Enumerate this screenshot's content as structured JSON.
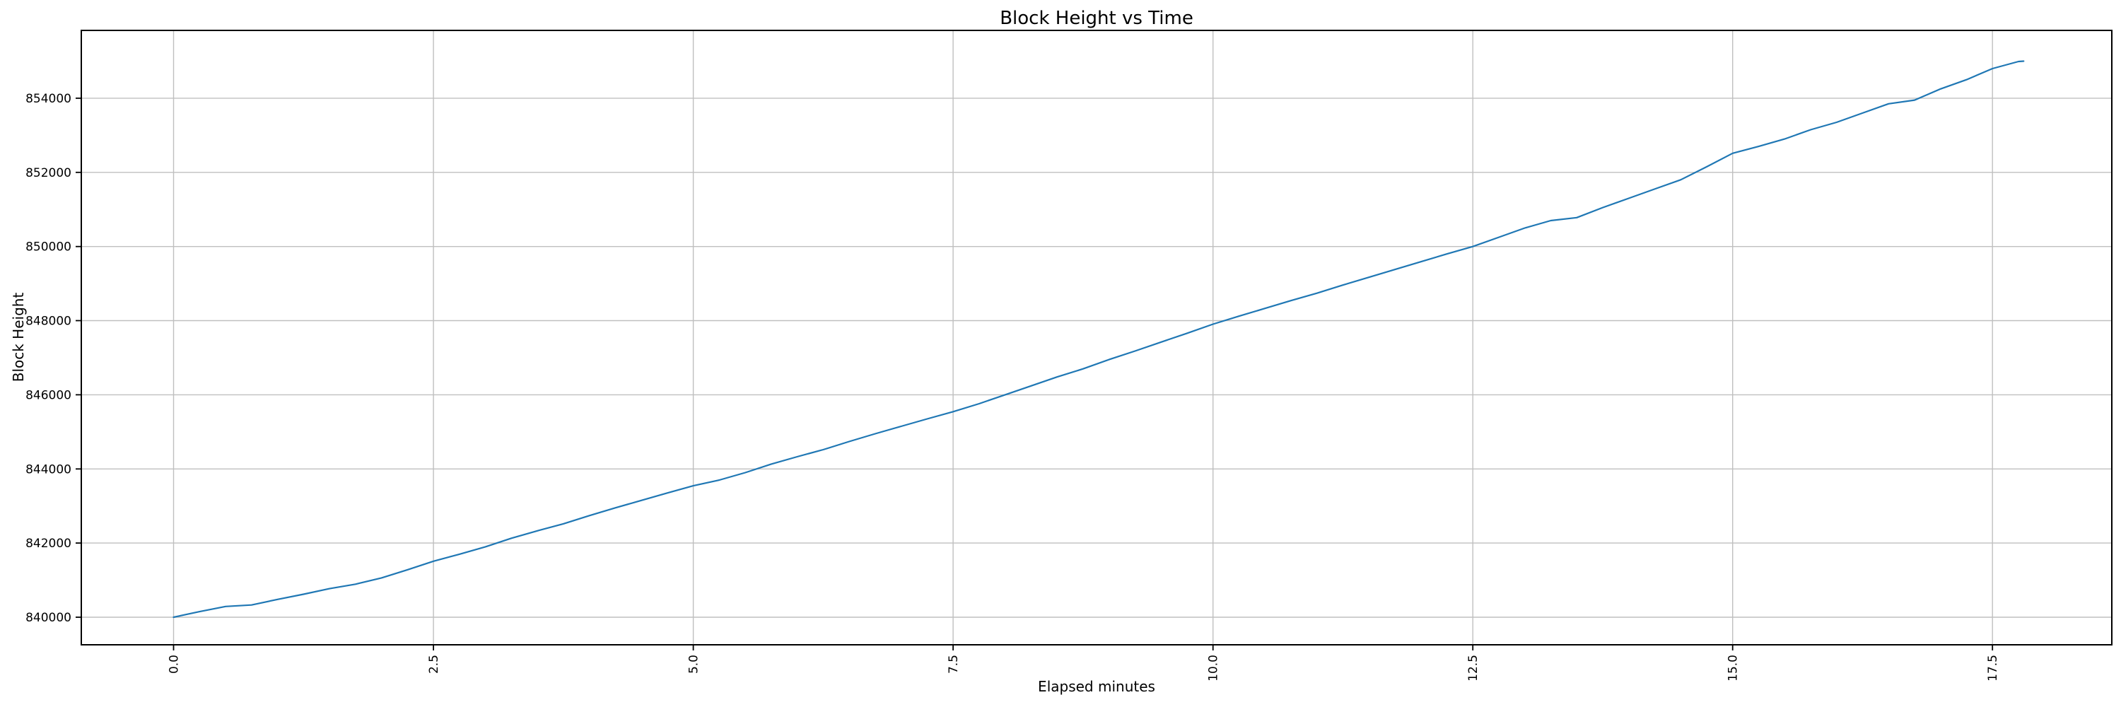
{
  "chart": {
    "title": "Block Height vs Time",
    "xlabel": "Elapsed minutes",
    "ylabel": "Block Height"
  },
  "chart_data": {
    "type": "line",
    "title": "Block Height vs Time",
    "xlabel": "Elapsed minutes",
    "ylabel": "Block Height",
    "legend": null,
    "grid": true,
    "line_color": "#1f77b4",
    "grid_color": "#bfbfbf",
    "spine_color": "#000000",
    "xlim": [
      -0.888,
      18.648
    ],
    "ylim": [
      839256,
      855830
    ],
    "xticks": [
      0.0,
      2.5,
      5.0,
      7.5,
      10.0,
      12.5,
      15.0,
      17.5
    ],
    "xtick_labels": [
      "0.0",
      "2.5",
      "5.0",
      "7.5",
      "10.0",
      "12.5",
      "15.0",
      "17.5"
    ],
    "xtick_rotation": 90,
    "yticks": [
      840000,
      842000,
      844000,
      846000,
      848000,
      850000,
      852000,
      854000
    ],
    "ytick_labels": [
      "840000",
      "842000",
      "844000",
      "846000",
      "848000",
      "850000",
      "852000",
      "854000"
    ],
    "series": [
      {
        "name": "block-height",
        "x": [
          0.0,
          0.25,
          0.5,
          0.75,
          1.0,
          1.25,
          1.5,
          1.75,
          2.0,
          2.25,
          2.5,
          2.75,
          3.0,
          3.25,
          3.5,
          3.75,
          4.0,
          4.25,
          4.5,
          4.75,
          5.0,
          5.25,
          5.5,
          5.75,
          6.0,
          6.25,
          6.5,
          6.75,
          7.0,
          7.25,
          7.5,
          7.75,
          8.0,
          8.25,
          8.5,
          8.75,
          9.0,
          9.25,
          9.5,
          9.75,
          10.0,
          10.25,
          10.5,
          10.75,
          11.0,
          11.25,
          11.5,
          11.75,
          12.0,
          12.25,
          12.5,
          12.75,
          13.0,
          13.25,
          13.5,
          13.75,
          14.0,
          14.25,
          14.5,
          14.75,
          15.0,
          15.25,
          15.5,
          15.75,
          16.0,
          16.25,
          16.5,
          16.75,
          17.0,
          17.25,
          17.5,
          17.75,
          17.8
        ],
        "y": [
          840000,
          840150,
          840290,
          840330,
          840480,
          840620,
          840770,
          840890,
          841060,
          841280,
          841510,
          841700,
          841900,
          842130,
          842330,
          842520,
          842740,
          842950,
          843150,
          843350,
          843545,
          843700,
          843900,
          844130,
          844330,
          844520,
          844740,
          844950,
          845150,
          845350,
          845545,
          845760,
          846000,
          846240,
          846480,
          846700,
          846950,
          847180,
          847420,
          847660,
          847905,
          848120,
          848330,
          848540,
          848740,
          848960,
          849170,
          849380,
          849590,
          849800,
          850000,
          850250,
          850500,
          850700,
          850780,
          851050,
          851300,
          851550,
          851800,
          852150,
          852515,
          852700,
          852900,
          853150,
          853350,
          853600,
          853850,
          853950,
          854250,
          854500,
          854800,
          854990,
          855000
        ]
      }
    ]
  }
}
